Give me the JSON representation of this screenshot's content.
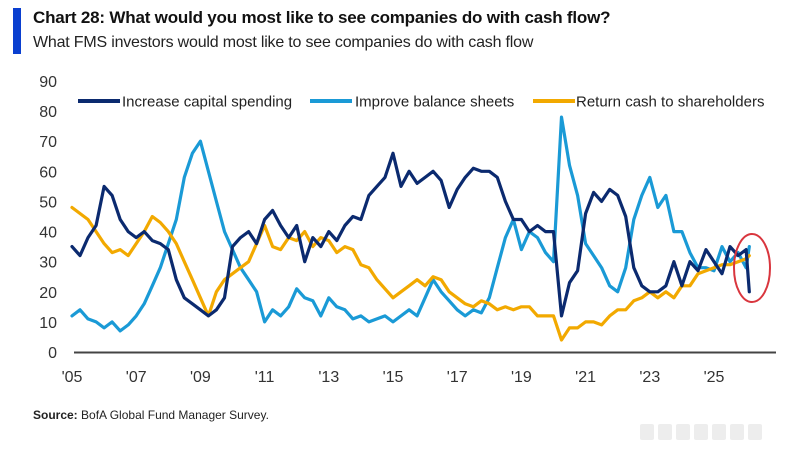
{
  "header": {
    "title": "Chart 28: What would you most like to see companies do with cash flow?",
    "subtitle": "What FMS investors would most like to see companies do with cash flow"
  },
  "footer": {
    "source_label": "Source:",
    "source_text": "BofA Global Fund Manager Survey."
  },
  "colors": {
    "accent_bar": "#0a3fd0",
    "capex": "#0b2a6f",
    "balance": "#1a9ad6",
    "cash": "#f2a900",
    "annotation": "#d9363e",
    "axis": "#444444"
  },
  "chart_data": {
    "type": "line",
    "title": "Chart 28: What would you most like to see companies do with cash flow?",
    "subtitle": "What FMS investors would most like to see companies do with cash flow",
    "xlabel": "",
    "ylabel": "",
    "xlim": [
      2005,
      2027
    ],
    "ylim": [
      0,
      90
    ],
    "yticks": [
      0,
      10,
      20,
      30,
      40,
      50,
      60,
      70,
      80,
      90
    ],
    "xticks": [
      2005,
      2007,
      2009,
      2011,
      2013,
      2015,
      2017,
      2019,
      2021,
      2023,
      2025
    ],
    "xtick_labels": [
      "'05",
      "'07",
      "'09",
      "'11",
      "'13",
      "'15",
      "'17",
      "'19",
      "'21",
      "'23",
      "'25"
    ],
    "grid": false,
    "legend_position": "top",
    "annotation": "red circle highlighting latest readings (2025-2026)",
    "series": [
      {
        "name": "Increase capital spending",
        "color": "#0b2a6f",
        "x": [
          2005.0,
          2005.25,
          2005.5,
          2005.75,
          2006.0,
          2006.25,
          2006.5,
          2006.75,
          2007.0,
          2007.25,
          2007.5,
          2007.75,
          2008.0,
          2008.25,
          2008.5,
          2008.75,
          2009.0,
          2009.25,
          2009.5,
          2009.75,
          2010.0,
          2010.25,
          2010.5,
          2010.75,
          2011.0,
          2011.25,
          2011.5,
          2011.75,
          2012.0,
          2012.25,
          2012.5,
          2012.75,
          2013.0,
          2013.25,
          2013.5,
          2013.75,
          2014.0,
          2014.25,
          2014.5,
          2014.75,
          2015.0,
          2015.25,
          2015.5,
          2015.75,
          2016.0,
          2016.25,
          2016.5,
          2016.75,
          2017.0,
          2017.25,
          2017.5,
          2017.75,
          2018.0,
          2018.25,
          2018.5,
          2018.75,
          2019.0,
          2019.25,
          2019.5,
          2019.75,
          2020.0,
          2020.25,
          2020.5,
          2020.75,
          2021.0,
          2021.25,
          2021.5,
          2021.75,
          2022.0,
          2022.25,
          2022.5,
          2022.75,
          2023.0,
          2023.25,
          2023.5,
          2023.75,
          2024.0,
          2024.25,
          2024.5,
          2024.75,
          2025.0,
          2025.25,
          2025.5,
          2025.75,
          2026.0,
          2026.1
        ],
        "y": [
          35,
          32,
          38,
          42,
          55,
          52,
          44,
          40,
          38,
          40,
          37,
          36,
          34,
          24,
          18,
          16,
          14,
          12,
          14,
          18,
          35,
          38,
          40,
          36,
          44,
          47,
          42,
          38,
          42,
          30,
          38,
          35,
          40,
          37,
          42,
          45,
          44,
          52,
          55,
          58,
          66,
          55,
          60,
          56,
          58,
          60,
          57,
          48,
          54,
          58,
          61,
          60,
          60,
          58,
          50,
          44,
          44,
          40,
          42,
          40,
          40,
          12,
          23,
          27,
          46,
          53,
          50,
          54,
          52,
          45,
          28,
          22,
          20,
          20,
          22,
          30,
          22,
          30,
          27,
          34,
          30,
          26,
          35,
          32,
          34,
          20
        ]
      },
      {
        "name": "Improve balance sheets",
        "color": "#1a9ad6",
        "x": [
          2005.0,
          2005.25,
          2005.5,
          2005.75,
          2006.0,
          2006.25,
          2006.5,
          2006.75,
          2007.0,
          2007.25,
          2007.5,
          2007.75,
          2008.0,
          2008.25,
          2008.5,
          2008.75,
          2009.0,
          2009.25,
          2009.5,
          2009.75,
          2010.0,
          2010.25,
          2010.5,
          2010.75,
          2011.0,
          2011.25,
          2011.5,
          2011.75,
          2012.0,
          2012.25,
          2012.5,
          2012.75,
          2013.0,
          2013.25,
          2013.5,
          2013.75,
          2014.0,
          2014.25,
          2014.5,
          2014.75,
          2015.0,
          2015.25,
          2015.5,
          2015.75,
          2016.0,
          2016.25,
          2016.5,
          2016.75,
          2017.0,
          2017.25,
          2017.5,
          2017.75,
          2018.0,
          2018.25,
          2018.5,
          2018.75,
          2019.0,
          2019.25,
          2019.5,
          2019.75,
          2020.0,
          2020.25,
          2020.5,
          2020.75,
          2021.0,
          2021.25,
          2021.5,
          2021.75,
          2022.0,
          2022.25,
          2022.5,
          2022.75,
          2023.0,
          2023.25,
          2023.5,
          2023.75,
          2024.0,
          2024.25,
          2024.5,
          2024.75,
          2025.0,
          2025.25,
          2025.5,
          2025.75,
          2026.0,
          2026.1
        ],
        "y": [
          12,
          14,
          11,
          10,
          8,
          10,
          7,
          9,
          12,
          16,
          22,
          28,
          36,
          44,
          58,
          66,
          70,
          60,
          50,
          40,
          34,
          28,
          24,
          20,
          10,
          14,
          12,
          15,
          21,
          18,
          17,
          12,
          18,
          15,
          14,
          11,
          12,
          10,
          11,
          12,
          10,
          12,
          14,
          12,
          18,
          24,
          20,
          17,
          14,
          12,
          14,
          13,
          18,
          28,
          38,
          44,
          34,
          40,
          38,
          33,
          30,
          78,
          62,
          52,
          36,
          32,
          28,
          22,
          20,
          28,
          44,
          52,
          58,
          48,
          52,
          40,
          40,
          33,
          28,
          28,
          27,
          35,
          30,
          33,
          28,
          35
        ]
      },
      {
        "name": "Return cash to shareholders",
        "color": "#f2a900",
        "x": [
          2005.0,
          2005.25,
          2005.5,
          2005.75,
          2006.0,
          2006.25,
          2006.5,
          2006.75,
          2007.0,
          2007.25,
          2007.5,
          2007.75,
          2008.0,
          2008.25,
          2008.5,
          2008.75,
          2009.0,
          2009.25,
          2009.5,
          2009.75,
          2010.0,
          2010.25,
          2010.5,
          2010.75,
          2011.0,
          2011.25,
          2011.5,
          2011.75,
          2012.0,
          2012.25,
          2012.5,
          2012.75,
          2013.0,
          2013.25,
          2013.5,
          2013.75,
          2014.0,
          2014.25,
          2014.5,
          2014.75,
          2015.0,
          2015.25,
          2015.5,
          2015.75,
          2016.0,
          2016.25,
          2016.5,
          2016.75,
          2017.0,
          2017.25,
          2017.5,
          2017.75,
          2018.0,
          2018.25,
          2018.5,
          2018.75,
          2019.0,
          2019.25,
          2019.5,
          2019.75,
          2020.0,
          2020.25,
          2020.5,
          2020.75,
          2021.0,
          2021.25,
          2021.5,
          2021.75,
          2022.0,
          2022.25,
          2022.5,
          2022.75,
          2023.0,
          2023.25,
          2023.5,
          2023.75,
          2024.0,
          2024.25,
          2024.5,
          2024.75,
          2025.0,
          2025.25,
          2025.5,
          2025.75,
          2026.0,
          2026.1
        ],
        "y": [
          48,
          46,
          44,
          40,
          36,
          33,
          34,
          32,
          36,
          40,
          45,
          43,
          40,
          36,
          30,
          24,
          18,
          12,
          20,
          24,
          26,
          28,
          30,
          36,
          42,
          35,
          34,
          38,
          37,
          40,
          35,
          38,
          37,
          33,
          35,
          34,
          29,
          28,
          24,
          21,
          18,
          20,
          22,
          24,
          22,
          25,
          24,
          20,
          18,
          16,
          15,
          17,
          16,
          14,
          15,
          14,
          15,
          15,
          12,
          12,
          12,
          4,
          8,
          8,
          10,
          10,
          9,
          12,
          14,
          14,
          17,
          18,
          20,
          18,
          20,
          18,
          22,
          22,
          26,
          27,
          28,
          29,
          29,
          30,
          31,
          32
        ]
      }
    ]
  }
}
